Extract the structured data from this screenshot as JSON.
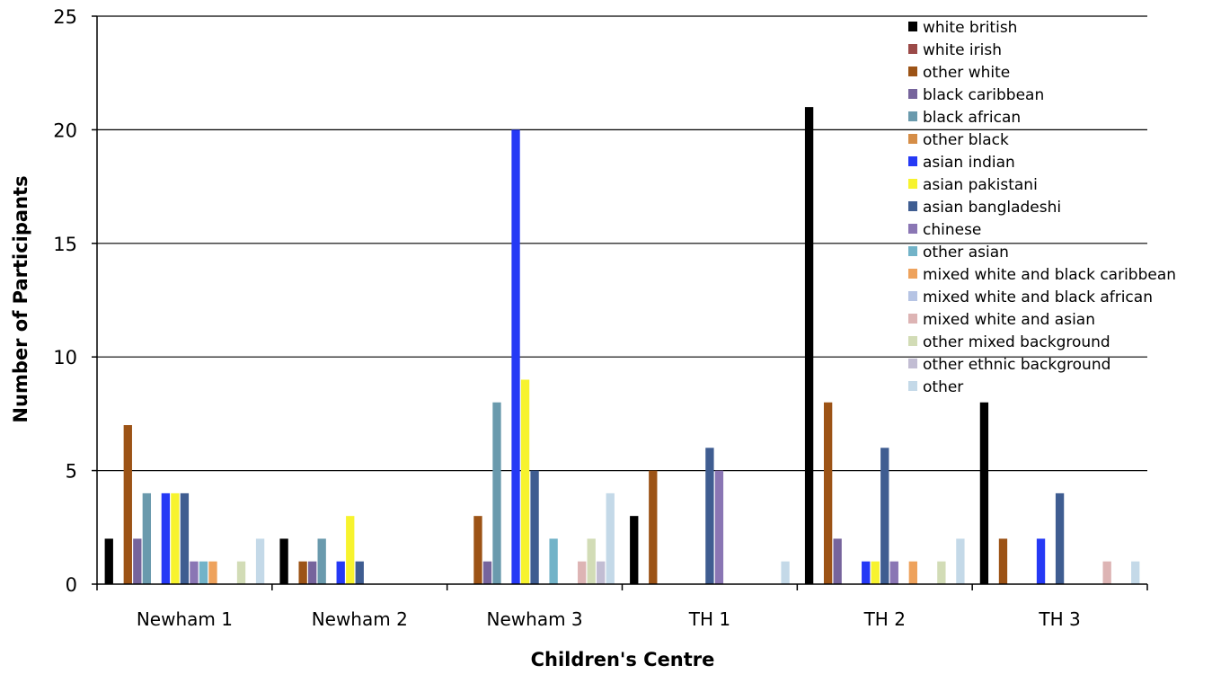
{
  "chart_data": {
    "type": "bar",
    "title": "",
    "xlabel": "Children's Centre",
    "ylabel": "Number of Participants",
    "ylim": [
      0,
      25
    ],
    "yticks": [
      "0",
      "5",
      "10",
      "15",
      "20",
      "25"
    ],
    "grid": "horizontal",
    "legend_position": "right",
    "categories": [
      "Newham 1",
      "Newham 2",
      "Newham 3",
      "TH 1",
      "TH 2",
      "TH 3"
    ],
    "series": [
      {
        "name": "white british",
        "color": "#000000",
        "values": [
          2,
          2,
          0,
          3,
          21,
          8
        ]
      },
      {
        "name": "white irish",
        "color": "#9b4a48",
        "values": [
          0,
          0,
          0,
          0,
          0,
          0
        ]
      },
      {
        "name": "other white",
        "color": "#9c5316",
        "values": [
          7,
          1,
          3,
          5,
          8,
          2
        ]
      },
      {
        "name": "black caribbean",
        "color": "#76649c",
        "values": [
          2,
          1,
          1,
          0,
          2,
          0
        ]
      },
      {
        "name": "black african",
        "color": "#6a9aad",
        "values": [
          4,
          2,
          8,
          0,
          0,
          0
        ]
      },
      {
        "name": "other black",
        "color": "#d58d47",
        "values": [
          0,
          0,
          0,
          0,
          0,
          0
        ]
      },
      {
        "name": "asian indian",
        "color": "#2539f5",
        "values": [
          4,
          1,
          20,
          0,
          1,
          2
        ]
      },
      {
        "name": "asian pakistani",
        "color": "#f7f32e",
        "values": [
          4,
          3,
          9,
          0,
          1,
          0
        ]
      },
      {
        "name": "asian bangladeshi",
        "color": "#3f5d91",
        "values": [
          4,
          1,
          5,
          6,
          6,
          4
        ]
      },
      {
        "name": "chinese",
        "color": "#8a76b4",
        "values": [
          1,
          0,
          0,
          5,
          1,
          0
        ]
      },
      {
        "name": "other asian",
        "color": "#72b3c8",
        "values": [
          1,
          0,
          2,
          0,
          0,
          0
        ]
      },
      {
        "name": "mixed white and black caribbean",
        "color": "#eea25c",
        "values": [
          1,
          0,
          0,
          0,
          1,
          0
        ]
      },
      {
        "name": "mixed white and black african",
        "color": "#b6c4e4",
        "values": [
          0,
          0,
          0,
          0,
          0,
          0
        ]
      },
      {
        "name": "mixed white and asian",
        "color": "#ddb4b4",
        "values": [
          0,
          0,
          1,
          0,
          0,
          1
        ]
      },
      {
        "name": "other mixed background",
        "color": "#d2dcb6",
        "values": [
          1,
          0,
          2,
          0,
          1,
          0
        ]
      },
      {
        "name": "other ethnic background",
        "color": "#c2bdd3",
        "values": [
          0,
          0,
          1,
          0,
          0,
          0
        ]
      },
      {
        "name": "other",
        "color": "#c4d9e8",
        "values": [
          2,
          0,
          4,
          1,
          2,
          1
        ]
      }
    ]
  }
}
